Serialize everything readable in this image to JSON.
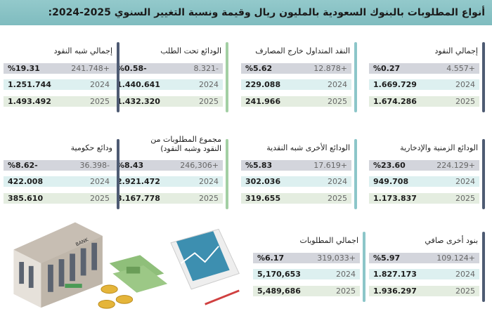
{
  "title": "أنواع المطلوبات بالبنوك السعودية بالمليون ريال وقيمة ونسبة التغيير السنوي 2025-2024:",
  "colors": {
    "slate": "#4e5b73",
    "green": "#a3cfa4",
    "teal": "#8cc6c9",
    "row_change": "#d3d5dc",
    "row_2024": "#ddf0f0",
    "row_2025": "#e4ede0",
    "title_bg": "#8cc4c6"
  },
  "blocks": [
    {
      "label": "إجمالي النقود",
      "change": "4.557+",
      "pct": "%0.27",
      "v2024": "1.669.729",
      "v2025": "1.674.286",
      "y2024": "2024",
      "y2025": "2025",
      "bar": "slate"
    },
    {
      "label": "النقد المتداول خارج المصارف",
      "change": "12.878+",
      "pct": "%5.62",
      "v2024": "229.088",
      "v2025": "241.966",
      "y2024": "2024",
      "y2025": "2025",
      "bar": "teal"
    },
    {
      "label": "الودائع تحت الطلب",
      "change": "8.321-",
      "pct": "%0.58-",
      "v2024": "1.440.641",
      "v2025": "1.432.320",
      "y2024": "2024",
      "y2025": "2025",
      "bar": "green"
    },
    {
      "label": "إجمالي شبه النقود",
      "change": "241.748+",
      "pct": "%19.31",
      "v2024": "1.251.744",
      "v2025": "1.493.492",
      "y2024": "2024",
      "y2025": "2025",
      "bar": "slate"
    },
    {
      "label": "الودائع الزمنية والإدخارية",
      "change": "224.129+",
      "pct": "%23.60",
      "v2024": "949.708",
      "v2025": "1.173.837",
      "y2024": "2024",
      "y2025": "2025",
      "bar": "slate"
    },
    {
      "label": "الودائع الأخرى شبه النقدية",
      "change": "17.619+",
      "pct": "%5.83",
      "v2024": "302.036",
      "v2025": "319.655",
      "y2024": "2024",
      "y2025": "2025",
      "bar": "teal"
    },
    {
      "label": "مجموع المطلوبات من النقود وشبه النقود)",
      "change": "246,306+",
      "pct": "%8.43",
      "v2024": "2.921.472",
      "v2025": "3.167.778",
      "y2024": "2024",
      "y2025": "2025",
      "bar": "green"
    },
    {
      "label": "ودائع حكومية",
      "change": "36.398-",
      "pct": "%8.62-",
      "v2024": "422.008",
      "v2025": "385.610",
      "y2024": "2024",
      "y2025": "2025",
      "bar": "slate"
    },
    {
      "label": "بنود أخرى صافي",
      "change": "109.124+",
      "pct": "%5.97",
      "v2024": "1.827.173",
      "v2025": "1.936.297",
      "y2024": "2024",
      "y2025": "2025",
      "bar": "slate"
    },
    {
      "label": "اجمالي المطلوبات",
      "change": "319,033+",
      "pct": "%6.17",
      "v2024": "5,170,653",
      "v2025": "5,489,686",
      "y2024": "2024",
      "y2025": "2025",
      "bar": "teal"
    }
  ],
  "illustration": {
    "icons": [
      "bank-building-icon",
      "money-stack-icon",
      "coins-icon",
      "documents-icon"
    ],
    "sign_text": "BANK"
  }
}
